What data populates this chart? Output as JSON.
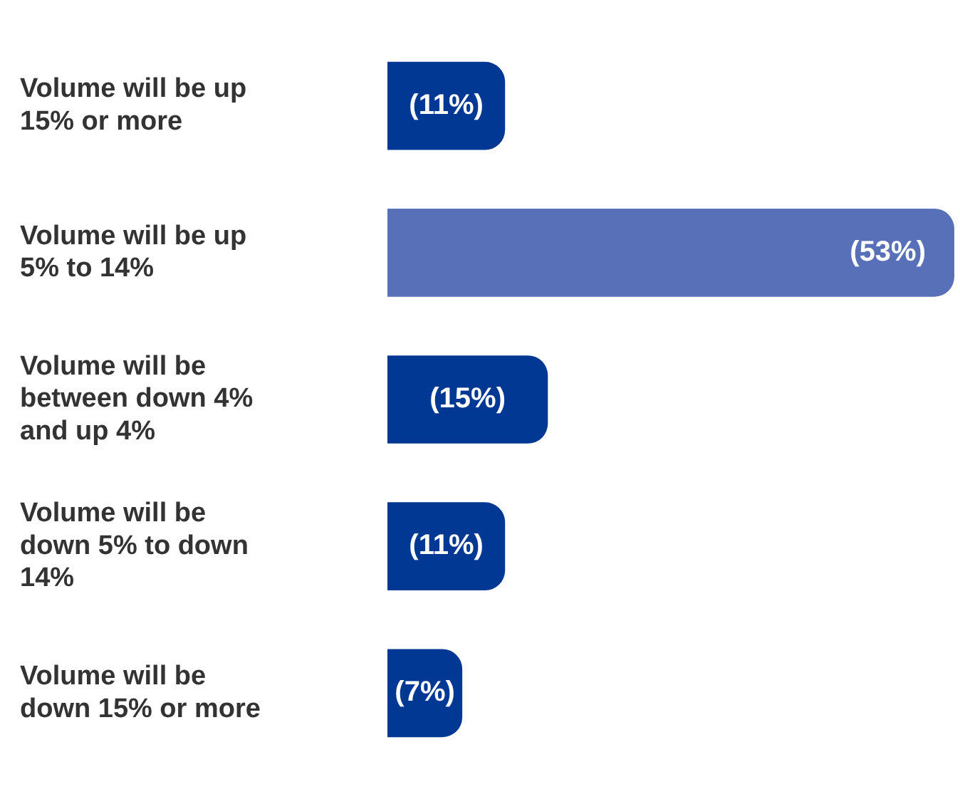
{
  "chart_data": {
    "type": "bar",
    "orientation": "horizontal",
    "categories": [
      "Volume will be up 15% or more",
      "Volume will be up 5% to 14%",
      "Volume will be between down 4% and up 4%",
      "Volume will be down 5% to down 14%",
      "Volume will be down 15% or more"
    ],
    "values": [
      11,
      53,
      15,
      11,
      7
    ],
    "colors": [
      "#003893",
      "#5870b8",
      "#003893",
      "#003893",
      "#003893"
    ],
    "value_labels": [
      "(11%)",
      "(53%)",
      "(15%)",
      "(11%)",
      "(7%)"
    ],
    "legend": false
  }
}
